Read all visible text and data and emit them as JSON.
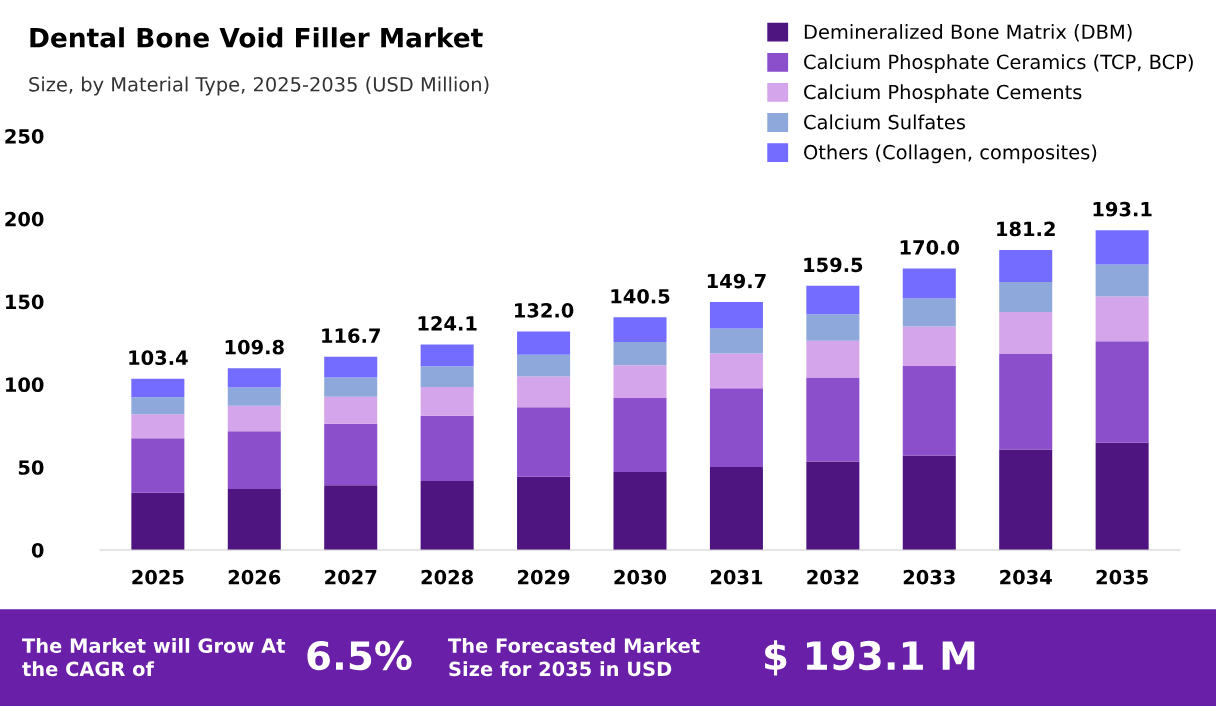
{
  "chart_data": {
    "type": "bar",
    "stacked": true,
    "title": "Dental Bone Void Filler Market",
    "subtitle": "Size, by Material Type, 2025-2035 (USD Million)",
    "categories": [
      "2025",
      "2026",
      "2027",
      "2028",
      "2029",
      "2030",
      "2031",
      "2032",
      "2033",
      "2034",
      "2035"
    ],
    "series": [
      {
        "name": "Demineralized Bone Matrix (DBM)",
        "color": "#4e1581",
        "values": [
          34.6,
          36.8,
          39.1,
          41.6,
          44.2,
          47.1,
          50.1,
          53.4,
          57.0,
          60.7,
          64.7
        ]
      },
      {
        "name": "Calcium Phosphate Ceramics (TCP, BCP)",
        "color": "#8b4fcc",
        "values": [
          32.9,
          34.9,
          37.1,
          39.5,
          42.0,
          44.7,
          47.6,
          50.7,
          54.1,
          57.6,
          61.4
        ]
      },
      {
        "name": "Calcium Phosphate Cements",
        "color": "#d4a5ea",
        "values": [
          14.5,
          15.4,
          16.3,
          17.4,
          18.5,
          19.7,
          21.0,
          22.3,
          23.8,
          25.4,
          27.0
        ]
      },
      {
        "name": "Calcium Sulfates",
        "color": "#8fa8dc",
        "values": [
          10.3,
          11.0,
          11.7,
          12.4,
          13.2,
          14.1,
          15.0,
          16.0,
          17.0,
          18.1,
          19.3
        ]
      },
      {
        "name": "Others (Collagen, composites)",
        "color": "#746cff",
        "values": [
          11.1,
          11.7,
          12.5,
          13.2,
          14.1,
          14.9,
          16.0,
          17.1,
          18.1,
          19.4,
          20.7
        ]
      }
    ],
    "totals": [
      "103.4",
      "109.8",
      "116.7",
      "124.1",
      "132.0",
      "140.5",
      "149.7",
      "159.5",
      "170.0",
      "181.2",
      "193.1"
    ],
    "ylim": [
      0,
      250
    ],
    "yticks": [
      0,
      50,
      100,
      150,
      200,
      250
    ],
    "grid": false,
    "legend": "top right",
    "annotations": [
      "The Market will Grow At the CAGR of",
      "6.5%",
      "The Forecasted Market Size for 2035 in USD",
      "$ 193.1 M"
    ]
  }
}
